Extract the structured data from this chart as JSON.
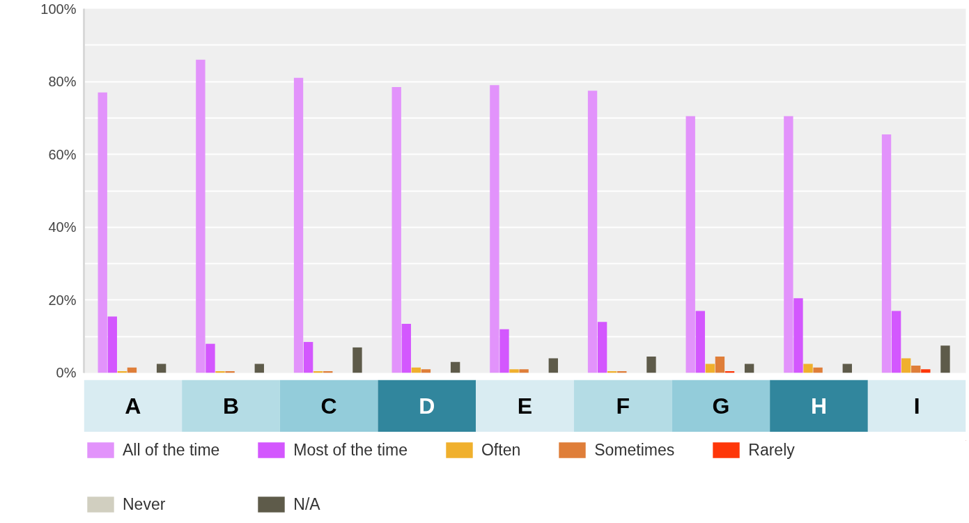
{
  "chart_data": {
    "type": "bar",
    "categories": [
      "A",
      "B",
      "C",
      "D",
      "E",
      "F",
      "G",
      "H",
      "I"
    ],
    "series": [
      {
        "name": "All of the time",
        "color": "#e293fb",
        "values": [
          77,
          86,
          81,
          78.5,
          79,
          77.5,
          70.5,
          70.5,
          65.5
        ]
      },
      {
        "name": "Most of the time",
        "color": "#d357fe",
        "values": [
          15.5,
          8,
          8.5,
          13.5,
          12,
          14,
          17,
          20.5,
          17
        ]
      },
      {
        "name": "Often",
        "color": "#f0b02d",
        "values": [
          0.5,
          0.5,
          0.5,
          1.5,
          1,
          0.5,
          2.5,
          2.5,
          4
        ]
      },
      {
        "name": "Sometimes",
        "color": "#df7e39",
        "values": [
          1.5,
          0.5,
          0.5,
          1,
          1,
          0.5,
          4.5,
          1.5,
          2
        ]
      },
      {
        "name": "Rarely",
        "color": "#fe3709",
        "values": [
          0,
          0,
          0,
          0,
          0,
          0,
          0.5,
          0,
          1
        ]
      },
      {
        "name": "Never",
        "color": "#d1cfc0",
        "values": [
          0,
          0,
          0,
          0,
          0,
          0,
          0,
          0,
          0
        ]
      },
      {
        "name": "N/A",
        "color": "#5e5b4a",
        "values": [
          2.5,
          2.5,
          7,
          3,
          4,
          4.5,
          2.5,
          2.5,
          7.5
        ]
      }
    ],
    "ylim": [
      0,
      100
    ],
    "yticks": [
      {
        "value": 0,
        "label": "0%"
      },
      {
        "value": 10,
        "label": null
      },
      {
        "value": 20,
        "label": "20%"
      },
      {
        "value": 30,
        "label": null
      },
      {
        "value": 40,
        "label": "40%"
      },
      {
        "value": 50,
        "label": null
      },
      {
        "value": 60,
        "label": "60%"
      },
      {
        "value": 70,
        "label": null
      },
      {
        "value": 80,
        "label": "80%"
      },
      {
        "value": 90,
        "label": null
      },
      {
        "value": 100,
        "label": "100%"
      }
    ],
    "grid": "y",
    "legend": "bottom"
  }
}
